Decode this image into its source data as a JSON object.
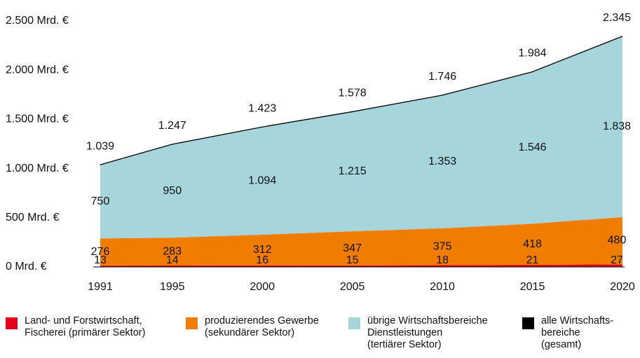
{
  "chart_data": {
    "type": "area",
    "stacked": true,
    "x": [
      1991,
      1995,
      2000,
      2005,
      2010,
      2015,
      2020
    ],
    "xlim": [
      1991,
      2020
    ],
    "xticks": [
      1991,
      1995,
      2000,
      2005,
      2010,
      2015,
      2020
    ],
    "ylim": [
      0,
      2500
    ],
    "yticks": [
      {
        "value": 0,
        "label": "0 Mrd. €"
      },
      {
        "value": 500,
        "label": "500 Mrd. €"
      },
      {
        "value": 1000,
        "label": "1.000 Mrd. €"
      },
      {
        "value": 1500,
        "label": "1.500 Mrd. €"
      },
      {
        "value": 2000,
        "label": "2.000 Mrd. €"
      },
      {
        "value": 2500,
        "label": "2.500 Mrd. €"
      }
    ],
    "grid": false,
    "series": [
      {
        "name": "Land- und Forstwirtschaft,\nFischerei (primärer Sektor)",
        "color": "#e2001a",
        "values": [
          13,
          14,
          16,
          15,
          18,
          21,
          27
        ]
      },
      {
        "name": "produzierendes Gewerbe\n(sekundärer Sektor)",
        "color": "#f07d00",
        "values": [
          276,
          283,
          312,
          347,
          375,
          418,
          480
        ]
      },
      {
        "name": "übrige Wirtschaftsbereiche\nDienstleistungen\n(tertiärer Sektor)",
        "color": "#a6d5dc",
        "values": [
          750,
          950,
          1094,
          1215,
          1353,
          1546,
          1838
        ],
        "value_labels": [
          "750",
          "950",
          "1.094",
          "1.215",
          "1.353",
          "1.546",
          "1.838"
        ]
      },
      {
        "name": "alle Wirtschafts-\nbereiche\n(gesamt)",
        "color": "#000000",
        "mark": "line",
        "values": [
          1039,
          1247,
          1423,
          1578,
          1746,
          1984,
          2345
        ],
        "value_labels": [
          "1.039",
          "1.247",
          "1.423",
          "1.578",
          "1.746",
          "1.984",
          "2.345"
        ]
      }
    ]
  }
}
